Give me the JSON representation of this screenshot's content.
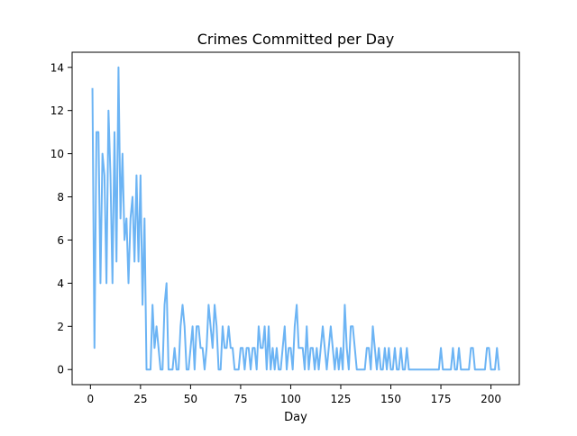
{
  "chart_data": {
    "type": "line",
    "title": "Crimes Committed per Day",
    "xlabel": "Day",
    "ylabel": "",
    "xlim": [
      -9.15,
      214.15
    ],
    "ylim": [
      -0.7,
      14.7
    ],
    "xticks": [
      0,
      25,
      50,
      75,
      100,
      125,
      150,
      175,
      200
    ],
    "yticks": [
      0,
      2,
      4,
      6,
      8,
      10,
      12,
      14
    ],
    "grid": false,
    "legend": "none",
    "color": "#6cb4f4",
    "series": [
      {
        "x": [
          1,
          2,
          3,
          4,
          5,
          6,
          7,
          8,
          9,
          10,
          11,
          12,
          13,
          14,
          15,
          16,
          17,
          18,
          19,
          20,
          21,
          22,
          23,
          24,
          25,
          26,
          27,
          28,
          29,
          30,
          31,
          32,
          33,
          34,
          35,
          36,
          37,
          38,
          39,
          40,
          41,
          42,
          43,
          44,
          45,
          46,
          47,
          48,
          49,
          50,
          51,
          52,
          53,
          54,
          55,
          56,
          57,
          58,
          59,
          60,
          61,
          62,
          63,
          64,
          65,
          66,
          67,
          68,
          69,
          70,
          71,
          72,
          73,
          74,
          75,
          76,
          77,
          78,
          79,
          80,
          81,
          82,
          83,
          84,
          85,
          86,
          87,
          88,
          89,
          90,
          91,
          92,
          93,
          94,
          95,
          96,
          97,
          98,
          99,
          100,
          101,
          102,
          103,
          104,
          105,
          106,
          107,
          108,
          109,
          110,
          111,
          112,
          113,
          114,
          115,
          116,
          117,
          118,
          119,
          120,
          121,
          122,
          123,
          124,
          125,
          126,
          127,
          128,
          129,
          130,
          131,
          132,
          133,
          134,
          135,
          136,
          137,
          138,
          139,
          140,
          141,
          142,
          143,
          144,
          145,
          146,
          147,
          148,
          149,
          150,
          151,
          152,
          153,
          154,
          155,
          156,
          157,
          158,
          159,
          160,
          161,
          162,
          163,
          164,
          165,
          166,
          167,
          168,
          169,
          170,
          171,
          172,
          173,
          174,
          175,
          176,
          177,
          178,
          179,
          180,
          181,
          182,
          183,
          184,
          185,
          186,
          187,
          188,
          189,
          190,
          191,
          192,
          193,
          194,
          195,
          196,
          197,
          198,
          199,
          200,
          201,
          202,
          203,
          204
        ],
        "values": [
          13,
          1,
          11,
          11,
          4,
          10,
          9,
          4,
          12,
          9,
          4,
          11,
          5,
          14,
          7,
          10,
          6,
          7,
          4,
          7,
          8,
          5,
          9,
          5,
          9,
          3,
          7,
          0,
          0,
          0,
          3,
          1,
          2,
          1,
          0,
          0,
          3,
          4,
          0,
          0,
          0,
          1,
          0,
          0,
          2,
          3,
          2,
          0,
          0,
          1,
          2,
          0,
          2,
          2,
          1,
          1,
          0,
          1,
          3,
          2,
          1,
          3,
          2,
          0,
          0,
          2,
          1,
          1,
          2,
          1,
          1,
          0,
          0,
          0,
          1,
          1,
          0,
          1,
          1,
          0,
          1,
          1,
          0,
          2,
          1,
          1,
          2,
          0,
          2,
          0,
          1,
          0,
          1,
          0,
          0,
          1,
          2,
          0,
          1,
          1,
          0,
          2,
          3,
          1,
          1,
          1,
          0,
          2,
          0,
          1,
          1,
          0,
          1,
          0,
          1,
          2,
          1,
          0,
          1,
          2,
          1,
          0,
          1,
          0,
          1,
          0,
          3,
          1,
          0,
          2,
          2,
          1,
          0,
          0,
          0,
          0,
          0,
          1,
          1,
          0,
          2,
          1,
          0,
          1,
          0,
          0,
          1,
          0,
          1,
          0,
          0,
          1,
          0,
          0,
          1,
          0,
          0,
          1,
          0,
          0,
          0,
          0,
          0,
          0,
          0,
          0,
          0,
          0,
          0,
          0,
          0,
          0,
          0,
          0,
          1,
          0,
          0,
          0,
          0,
          0,
          1,
          0,
          0,
          1,
          0,
          0,
          0,
          0,
          0,
          1,
          1,
          0,
          0,
          0,
          0,
          0,
          0,
          1,
          1,
          0,
          0,
          0,
          1,
          0
        ]
      }
    ]
  }
}
